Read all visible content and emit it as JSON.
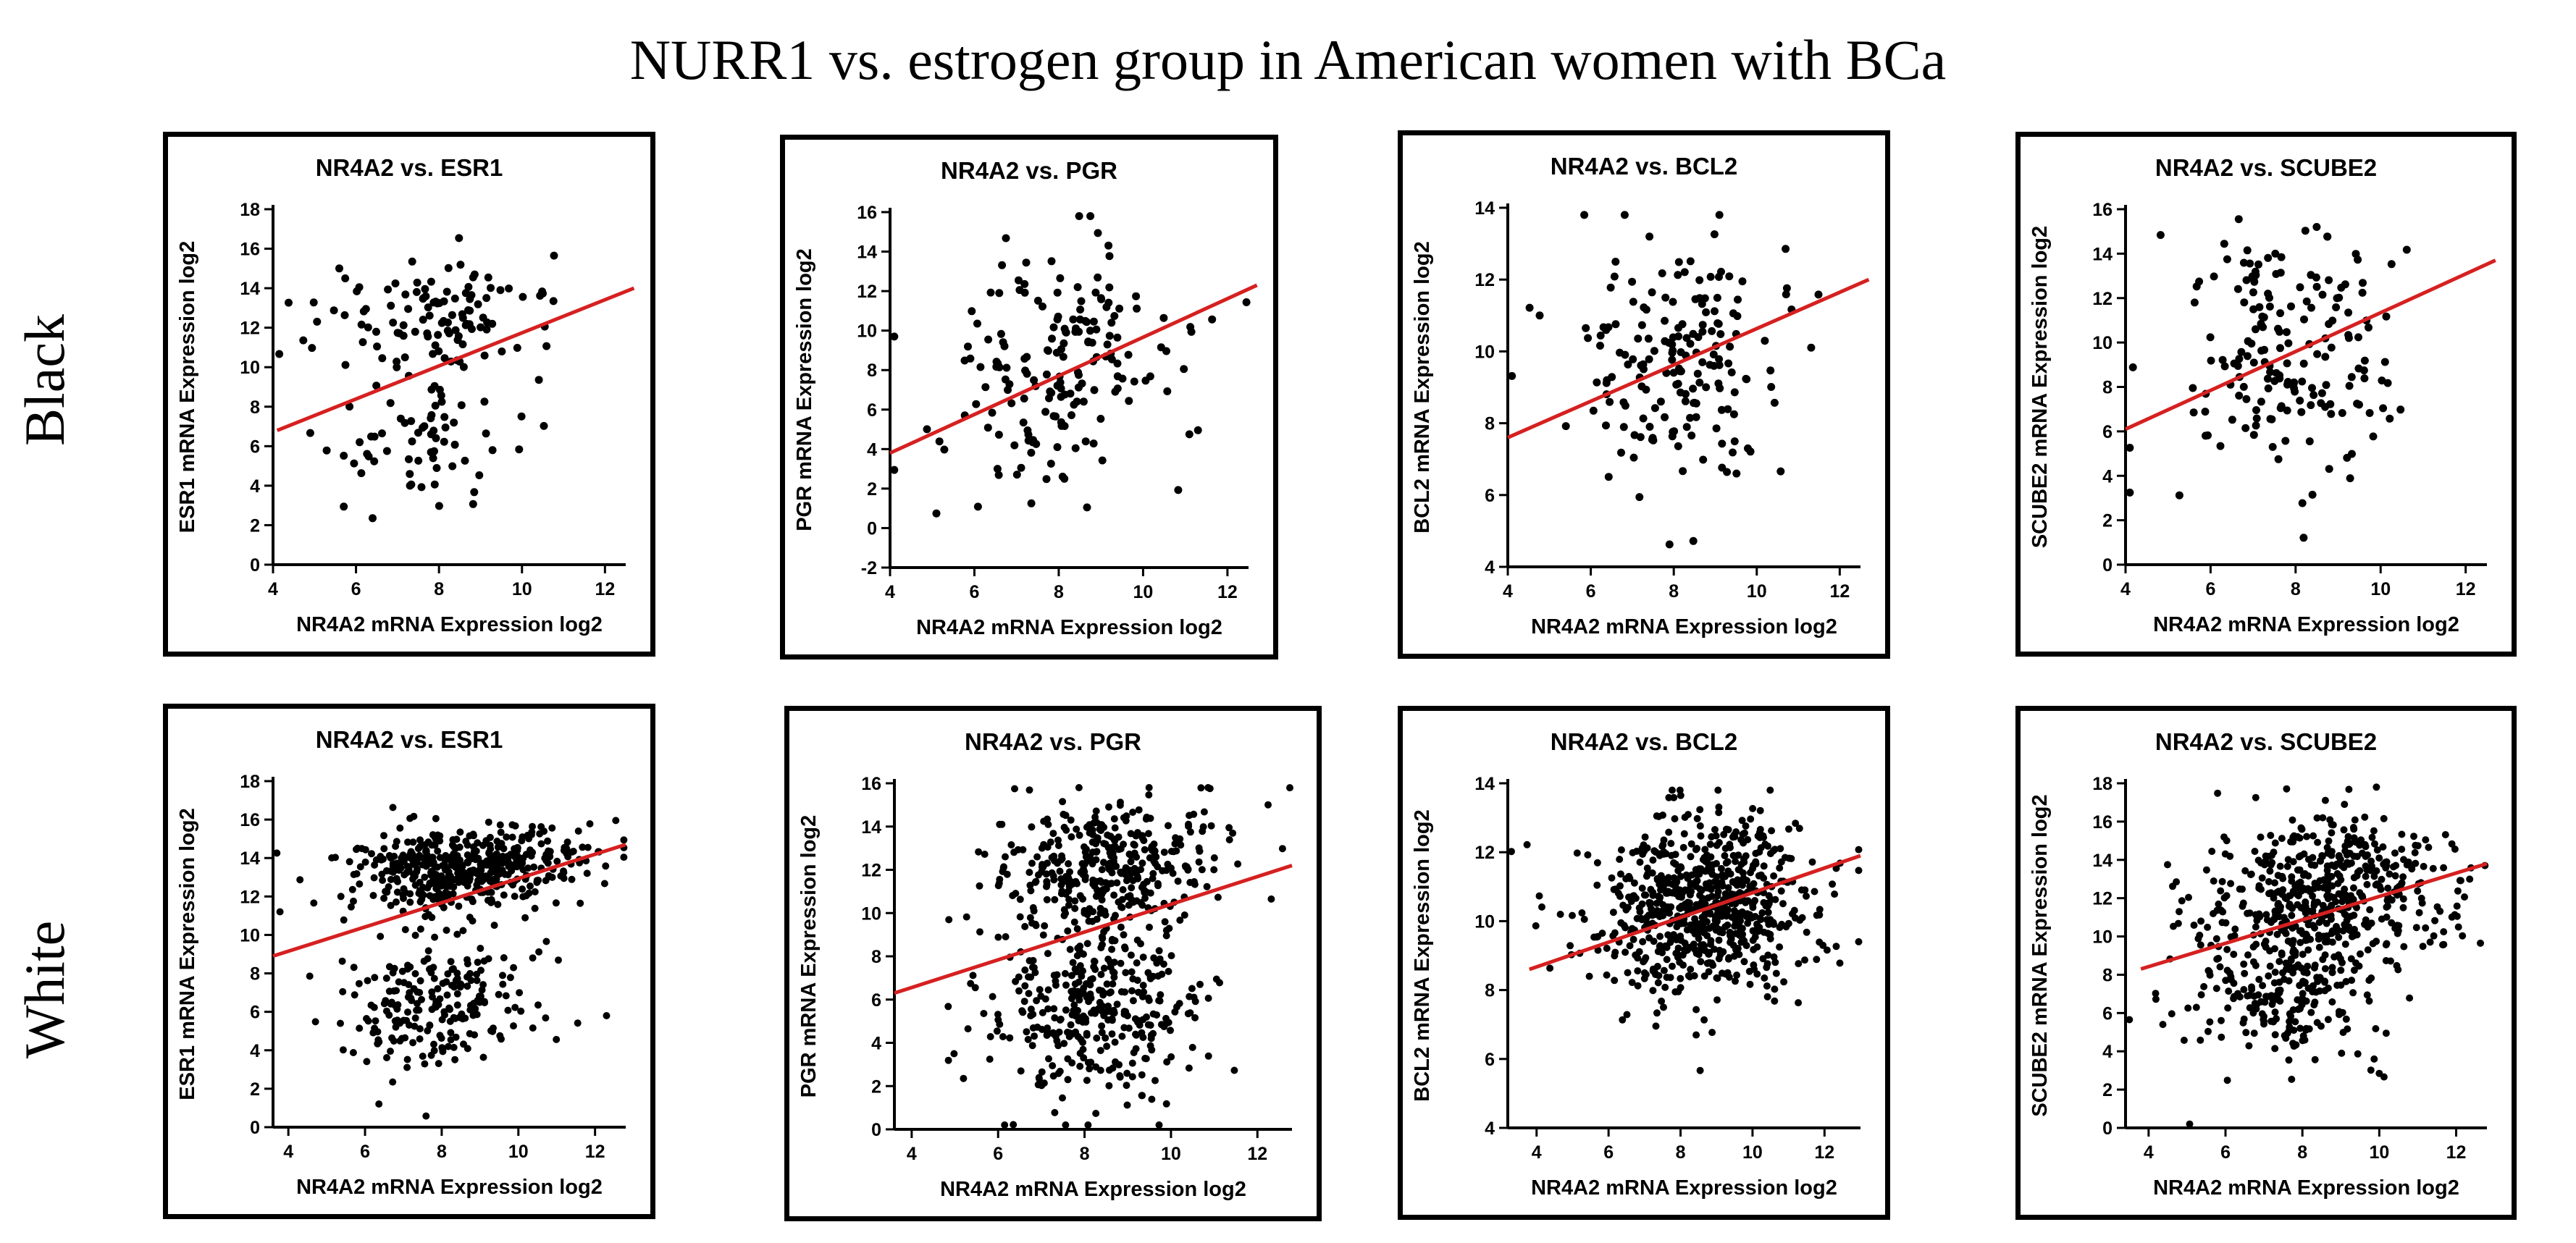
{
  "title": "NURR1 vs. estrogen group in American women with BCa",
  "row_labels": [
    "Black",
    "White"
  ],
  "colors": {
    "points": "#000000",
    "trend_line": "#d62020",
    "frame": "#000000"
  },
  "chart_data": [
    {
      "type": "scatter",
      "group": "Black",
      "title": "NR4A2 vs. ESR1",
      "xlabel": "NR4A2 mRNA Expression log2",
      "ylabel": "ESR1 mRNA Expression log2",
      "xlim": [
        4,
        12.5
      ],
      "ylim": [
        0,
        18
      ],
      "xticks": [
        4,
        6,
        8,
        10,
        12
      ],
      "yticks": [
        0,
        2,
        4,
        6,
        8,
        10,
        12,
        14,
        16,
        18
      ],
      "n_points": 180,
      "trend": {
        "x": [
          4.1,
          12.7
        ],
        "y": [
          6.8,
          14.0
        ]
      },
      "clusters": [
        {
          "x": 8.0,
          "y": 12.7,
          "sx": 1.4,
          "sy": 1.4,
          "w": 0.6
        },
        {
          "x": 7.4,
          "y": 6.3,
          "sx": 1.2,
          "sy": 1.8,
          "w": 0.4
        }
      ]
    },
    {
      "type": "scatter",
      "group": "Black",
      "title": "NR4A2 vs. PGR",
      "xlabel": "NR4A2 mRNA Expression log2",
      "ylabel": "PGR mRNA Expression log2",
      "xlim": [
        4,
        12.5
      ],
      "ylim": [
        -2,
        16
      ],
      "xticks": [
        4,
        6,
        8,
        10,
        12
      ],
      "yticks": [
        -2,
        0,
        2,
        4,
        6,
        8,
        10,
        12,
        14,
        16
      ],
      "n_points": 180,
      "trend": {
        "x": [
          4.0,
          12.7
        ],
        "y": [
          3.8,
          12.3
        ]
      },
      "clusters": [
        {
          "x": 8.0,
          "y": 8.2,
          "sx": 1.3,
          "sy": 3.0,
          "w": 1.0
        }
      ]
    },
    {
      "type": "scatter",
      "group": "Black",
      "title": "NR4A2 vs. BCL2",
      "xlabel": "NR4A2 mRNA Expression log2",
      "ylabel": "BCL2 mRNA Expression log2",
      "xlim": [
        4,
        12.5
      ],
      "ylim": [
        4,
        14
      ],
      "xticks": [
        4,
        6,
        8,
        10,
        12
      ],
      "yticks": [
        4,
        6,
        8,
        10,
        12,
        14
      ],
      "n_points": 180,
      "trend": {
        "x": [
          4.0,
          12.7
        ],
        "y": [
          7.6,
          12.0
        ]
      },
      "clusters": [
        {
          "x": 8.0,
          "y": 9.8,
          "sx": 1.3,
          "sy": 1.7,
          "w": 1.0
        }
      ]
    },
    {
      "type": "scatter",
      "group": "Black",
      "title": "NR4A2 vs. SCUBE2",
      "xlabel": "NR4A2 mRNA Expression log2",
      "ylabel": "SCUBE2 mRNA Expression log2",
      "xlim": [
        4,
        12.5
      ],
      "ylim": [
        0,
        16
      ],
      "xticks": [
        4,
        6,
        8,
        10,
        12
      ],
      "yticks": [
        0,
        2,
        4,
        6,
        8,
        10,
        12,
        14,
        16
      ],
      "n_points": 180,
      "trend": {
        "x": [
          4.0,
          12.7
        ],
        "y": [
          6.1,
          13.7
        ]
      },
      "clusters": [
        {
          "x": 8.0,
          "y": 9.6,
          "sx": 1.3,
          "sy": 2.9,
          "w": 1.0
        }
      ]
    },
    {
      "type": "scatter",
      "group": "White",
      "title": "NR4A2 vs. ESR1",
      "xlabel": "NR4A2 mRNA Expression log2",
      "ylabel": "ESR1 mRNA Expression log2",
      "xlim": [
        3.6,
        12.8
      ],
      "ylim": [
        0,
        18
      ],
      "xticks": [
        4,
        6,
        8,
        10,
        12
      ],
      "yticks": [
        0,
        2,
        4,
        6,
        8,
        10,
        12,
        14,
        16,
        18
      ],
      "n_points": 720,
      "trend": {
        "x": [
          3.6,
          12.8
        ],
        "y": [
          8.9,
          14.7
        ]
      },
      "clusters": [
        {
          "x": 8.6,
          "y": 13.5,
          "sx": 1.5,
          "sy": 1.1,
          "w": 0.72
        },
        {
          "x": 7.8,
          "y": 6.5,
          "sx": 1.3,
          "sy": 1.7,
          "w": 0.28
        }
      ]
    },
    {
      "type": "scatter",
      "group": "White",
      "title": "NR4A2 vs. PGR",
      "xlabel": "NR4A2 mRNA Expression log2",
      "ylabel": "PGR mRNA Expression log2",
      "xlim": [
        3.6,
        12.8
      ],
      "ylim": [
        0,
        16
      ],
      "xticks": [
        4,
        6,
        8,
        10,
        12
      ],
      "yticks": [
        0,
        2,
        4,
        6,
        8,
        10,
        12,
        14,
        16
      ],
      "n_points": 720,
      "trend": {
        "x": [
          3.6,
          12.8
        ],
        "y": [
          6.3,
          12.2
        ]
      },
      "clusters": [
        {
          "x": 8.6,
          "y": 12.2,
          "sx": 1.4,
          "sy": 1.5,
          "w": 0.5
        },
        {
          "x": 8.2,
          "y": 5.5,
          "sx": 1.3,
          "sy": 2.0,
          "w": 0.5
        }
      ]
    },
    {
      "type": "scatter",
      "group": "White",
      "title": "NR4A2 vs. BCL2",
      "xlabel": "NR4A2 mRNA Expression log2",
      "ylabel": "BCL2 mRNA Expression log2",
      "xlim": [
        3.2,
        13.0
      ],
      "ylim": [
        4,
        14
      ],
      "xticks": [
        4,
        6,
        8,
        10,
        12
      ],
      "yticks": [
        4,
        6,
        8,
        10,
        12,
        14
      ],
      "n_points": 720,
      "trend": {
        "x": [
          3.8,
          13.0
        ],
        "y": [
          8.6,
          11.9
        ]
      },
      "clusters": [
        {
          "x": 8.6,
          "y": 10.4,
          "sx": 1.5,
          "sy": 1.3,
          "w": 1.0
        }
      ]
    },
    {
      "type": "scatter",
      "group": "White",
      "title": "NR4A2 vs. SCUBE2",
      "xlabel": "NR4A2 mRNA Expression log2",
      "ylabel": "SCUBE2 mRNA Expression log2",
      "xlim": [
        3.4,
        12.8
      ],
      "ylim": [
        0,
        18
      ],
      "xticks": [
        4,
        6,
        8,
        10,
        12
      ],
      "yticks": [
        0,
        2,
        4,
        6,
        8,
        10,
        12,
        14,
        16,
        18
      ],
      "n_points": 720,
      "trend": {
        "x": [
          3.8,
          12.8
        ],
        "y": [
          8.3,
          13.8
        ]
      },
      "clusters": [
        {
          "x": 8.6,
          "y": 12.2,
          "sx": 1.5,
          "sy": 2.0,
          "w": 0.7
        },
        {
          "x": 7.6,
          "y": 7.0,
          "sx": 1.2,
          "sy": 1.8,
          "w": 0.3
        }
      ]
    }
  ]
}
